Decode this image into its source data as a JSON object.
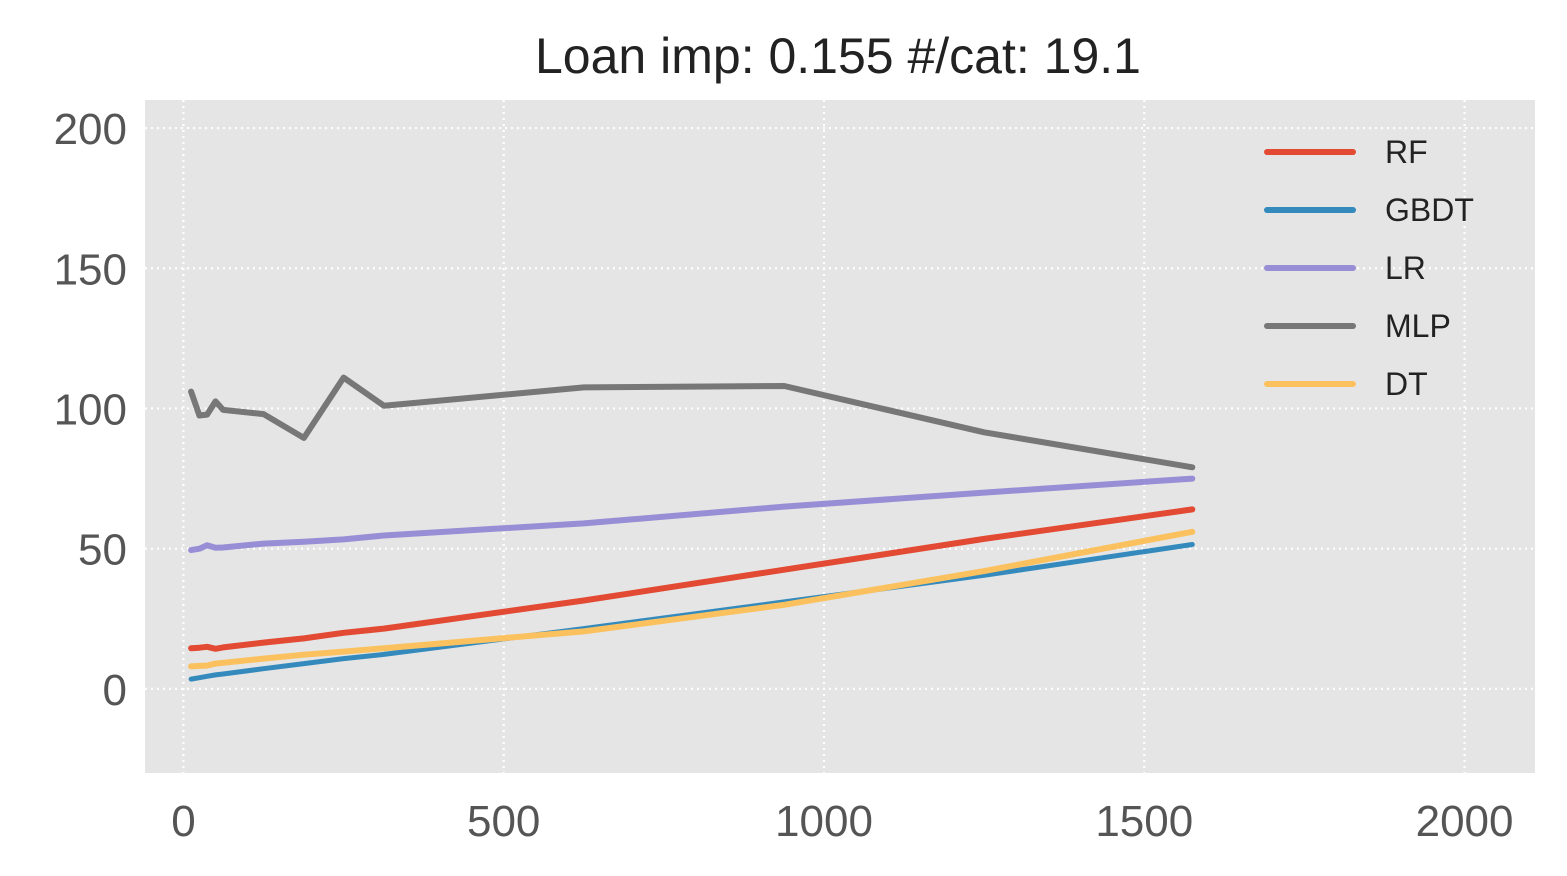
{
  "chart_data": {
    "type": "line",
    "title": "Loan imp: 0.155 #/cat: 19.1",
    "xlabel": "",
    "ylabel": "",
    "xlim": [
      -60,
      2110
    ],
    "ylim": [
      -30,
      210
    ],
    "xticks": [
      0,
      500,
      1000,
      1500,
      2000
    ],
    "yticks": [
      0,
      50,
      100,
      150,
      200
    ],
    "grid": true,
    "legend_position": "upper right",
    "series": [
      {
        "name": "RF",
        "color": "#E24A33",
        "x": [
          12,
          25,
          37,
          50,
          62,
          125,
          188,
          250,
          313,
          625,
          938,
          1250,
          1575
        ],
        "y": [
          14.5,
          14.7,
          15.0,
          14.3,
          14.8,
          16.5,
          18.0,
          20.0,
          21.5,
          31.5,
          42.5,
          53.5,
          64.0
        ]
      },
      {
        "name": "GBDT",
        "color": "#348ABD",
        "x": [
          12,
          25,
          37,
          50,
          62,
          125,
          188,
          250,
          313,
          625,
          938,
          1250,
          1575
        ],
        "y": [
          3.5,
          4.0,
          4.5,
          5.0,
          5.3,
          7.2,
          9.0,
          10.8,
          12.3,
          21.5,
          31.0,
          40.5,
          51.5
        ]
      },
      {
        "name": "LR",
        "color": "#988ED5",
        "x": [
          12,
          25,
          37,
          50,
          62,
          125,
          188,
          250,
          313,
          625,
          938,
          1250,
          1575
        ],
        "y": [
          49.5,
          50.0,
          51.2,
          50.3,
          50.4,
          51.8,
          52.5,
          53.3,
          54.7,
          59.0,
          65.0,
          70.0,
          75.0
        ]
      },
      {
        "name": "MLP",
        "color": "#777777",
        "x": [
          12,
          25,
          37,
          50,
          62,
          125,
          188,
          250,
          313,
          625,
          938,
          1250,
          1575
        ],
        "y": [
          106.0,
          97.5,
          97.8,
          102.5,
          99.5,
          98.0,
          89.5,
          111.0,
          101.0,
          107.5,
          108.0,
          91.5,
          79.0
        ]
      },
      {
        "name": "DT",
        "color": "#FBC15E",
        "x": [
          12,
          25,
          37,
          50,
          62,
          125,
          188,
          250,
          313,
          625,
          938,
          1250,
          1575
        ],
        "y": [
          8.0,
          8.2,
          8.3,
          9.0,
          9.3,
          10.8,
          12.2,
          13.3,
          14.5,
          20.5,
          30.0,
          42.0,
          56.0
        ]
      }
    ]
  }
}
